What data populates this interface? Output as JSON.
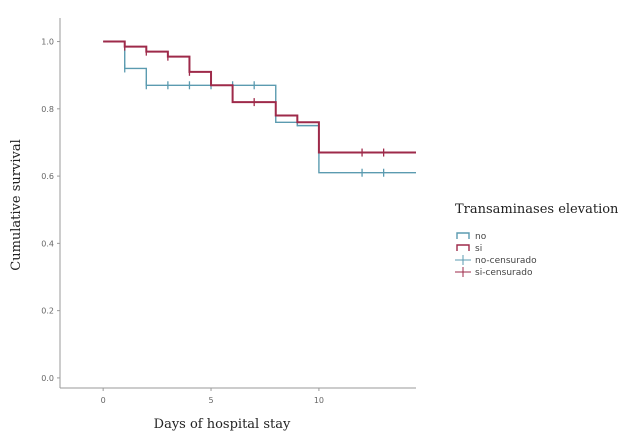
{
  "chart_data": {
    "type": "line",
    "xlabel": "Days of hospital stay",
    "ylabel": "Cumulative survival",
    "xlim": [
      -2,
      14.5
    ],
    "ylim": [
      -0.03,
      1.07
    ],
    "x_ticks": [
      0,
      5,
      10
    ],
    "x_tick_labels": [
      "0",
      "5",
      "10"
    ],
    "y_ticks": [
      0.0,
      0.2,
      0.4,
      0.6,
      0.8,
      1.0
    ],
    "y_tick_labels": [
      "0.0",
      "0.2",
      "0.4",
      "0.6",
      "0.8",
      "1.0"
    ],
    "grid": false,
    "legend": {
      "title": "Transaminases elevation",
      "position": "right",
      "entries": [
        "no",
        "si",
        "no-censurado",
        "si-censurado"
      ]
    },
    "series": [
      {
        "name": "no",
        "color": "#5b9bb0",
        "steps": [
          [
            0,
            1.0
          ],
          [
            1,
            0.92
          ],
          [
            2,
            0.87
          ],
          [
            8,
            0.76
          ],
          [
            9,
            0.75
          ],
          [
            10,
            0.61
          ],
          [
            14.5,
            0.61
          ]
        ],
        "censored": [
          [
            1,
            0.92
          ],
          [
            2,
            0.87
          ],
          [
            3,
            0.87
          ],
          [
            4,
            0.87
          ],
          [
            5,
            0.87
          ],
          [
            6,
            0.87
          ],
          [
            7,
            0.87
          ],
          [
            9,
            0.76
          ],
          [
            12,
            0.61
          ],
          [
            13,
            0.61
          ]
        ]
      },
      {
        "name": "si",
        "color": "#9e2a4a",
        "steps": [
          [
            0,
            1.0
          ],
          [
            1,
            0.985
          ],
          [
            2,
            0.97
          ],
          [
            3,
            0.955
          ],
          [
            4,
            0.91
          ],
          [
            5,
            0.87
          ],
          [
            6,
            0.82
          ],
          [
            8,
            0.78
          ],
          [
            9,
            0.76
          ],
          [
            10,
            0.67
          ],
          [
            14.5,
            0.67
          ]
        ],
        "censored": [
          [
            1,
            0.985
          ],
          [
            2,
            0.97
          ],
          [
            3,
            0.955
          ],
          [
            4,
            0.91
          ],
          [
            7,
            0.82
          ],
          [
            8,
            0.79
          ],
          [
            12,
            0.67
          ],
          [
            13,
            0.67
          ]
        ]
      }
    ]
  }
}
